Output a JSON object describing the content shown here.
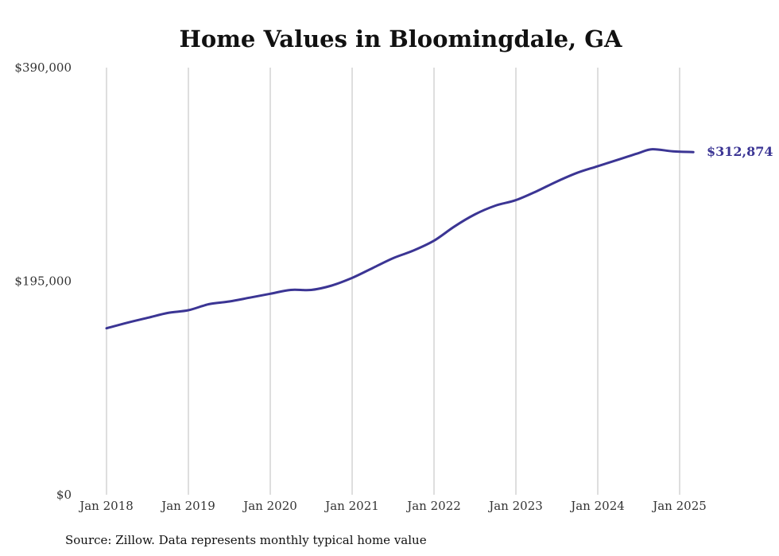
{
  "chart_data": {
    "type": "line",
    "title": "Home Values in Bloomingdale, GA",
    "source": "Source: Zillow. Data represents monthly typical home value",
    "xlabel": "",
    "ylabel": "",
    "ylim": [
      0,
      390000
    ],
    "y_ticks": [
      {
        "value": 0,
        "label": "$0"
      },
      {
        "value": 195000,
        "label": "$195,000"
      },
      {
        "value": 390000,
        "label": "$390,000"
      }
    ],
    "x_ticks": [
      {
        "value": "2018-01",
        "label": "Jan 2018"
      },
      {
        "value": "2019-01",
        "label": "Jan 2019"
      },
      {
        "value": "2020-01",
        "label": "Jan 2020"
      },
      {
        "value": "2021-01",
        "label": "Jan 2021"
      },
      {
        "value": "2022-01",
        "label": "Jan 2022"
      },
      {
        "value": "2023-01",
        "label": "Jan 2023"
      },
      {
        "value": "2024-01",
        "label": "Jan 2024"
      },
      {
        "value": "2025-01",
        "label": "Jan 2025"
      }
    ],
    "grid": "vertical",
    "line_color": "#3b3594",
    "end_label": "$312,874",
    "series": [
      {
        "points": [
          {
            "x": "2018-01",
            "y": 152000
          },
          {
            "x": "2018-04",
            "y": 157000
          },
          {
            "x": "2018-07",
            "y": 161500
          },
          {
            "x": "2018-10",
            "y": 166000
          },
          {
            "x": "2019-01",
            "y": 168500
          },
          {
            "x": "2019-04",
            "y": 174000
          },
          {
            "x": "2019-07",
            "y": 176500
          },
          {
            "x": "2019-10",
            "y": 180000
          },
          {
            "x": "2020-01",
            "y": 183500
          },
          {
            "x": "2020-04",
            "y": 187000
          },
          {
            "x": "2020-07",
            "y": 187000
          },
          {
            "x": "2020-10",
            "y": 191000
          },
          {
            "x": "2021-01",
            "y": 198000
          },
          {
            "x": "2021-04",
            "y": 207000
          },
          {
            "x": "2021-07",
            "y": 216000
          },
          {
            "x": "2021-10",
            "y": 223000
          },
          {
            "x": "2022-01",
            "y": 232000
          },
          {
            "x": "2022-04",
            "y": 245000
          },
          {
            "x": "2022-07",
            "y": 256000
          },
          {
            "x": "2022-10",
            "y": 264000
          },
          {
            "x": "2023-01",
            "y": 269000
          },
          {
            "x": "2023-04",
            "y": 277000
          },
          {
            "x": "2023-07",
            "y": 286000
          },
          {
            "x": "2023-10",
            "y": 294000
          },
          {
            "x": "2024-01",
            "y": 300000
          },
          {
            "x": "2024-04",
            "y": 306000
          },
          {
            "x": "2024-07",
            "y": 312000
          },
          {
            "x": "2024-09",
            "y": 315500
          },
          {
            "x": "2024-12",
            "y": 313500
          },
          {
            "x": "2025-03",
            "y": 312874
          }
        ]
      }
    ]
  }
}
